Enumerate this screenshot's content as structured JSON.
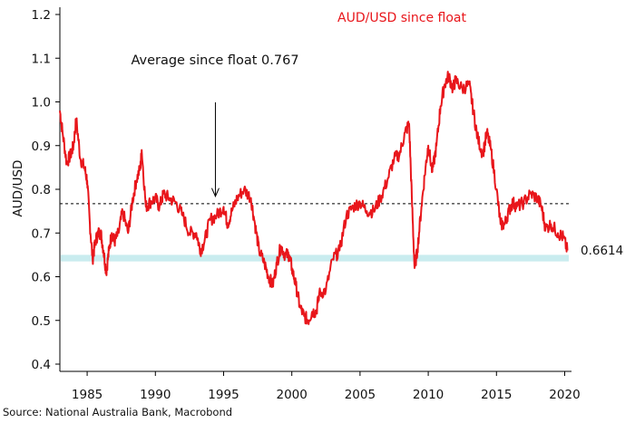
{
  "chart_data": {
    "type": "line",
    "title": "AUD/USD since float",
    "ylabel": "AUD/USD",
    "xlabel": "",
    "xlim": [
      1983.0,
      2020.3
    ],
    "ylim": [
      0.4,
      1.2
    ],
    "y_ticks": [
      0.4,
      0.5,
      0.6,
      0.7,
      0.8,
      0.9,
      1.0,
      1.1,
      1.2
    ],
    "x_ticks": [
      1985,
      1990,
      1995,
      2000,
      2005,
      2010,
      2015,
      2020
    ],
    "average": {
      "value": 0.767,
      "label": "Average since float 0.767",
      "arrow_year": 1994.4
    },
    "band": {
      "range": [
        0.635,
        0.65
      ]
    },
    "last_value_label": "0.6614",
    "series": [
      {
        "color": "#e8161b",
        "x": [
          1983.0,
          1983.2,
          1983.5,
          1983.8,
          1984.0,
          1984.2,
          1984.5,
          1984.8,
          1985.0,
          1985.2,
          1985.4,
          1985.6,
          1985.8,
          1986.0,
          1986.2,
          1986.4,
          1986.6,
          1986.8,
          1987.0,
          1987.3,
          1987.6,
          1988.0,
          1988.3,
          1988.6,
          1988.9,
          1989.0,
          1989.3,
          1989.6,
          1990.0,
          1990.3,
          1990.6,
          1991.0,
          1991.5,
          1992.0,
          1992.5,
          1993.0,
          1993.3,
          1993.6,
          1994.0,
          1994.5,
          1995.0,
          1995.3,
          1995.6,
          1996.0,
          1996.5,
          1997.0,
          1997.3,
          1997.6,
          1998.0,
          1998.3,
          1998.6,
          1998.9,
          1999.2,
          1999.5,
          1999.8,
          2000.0,
          2000.3,
          2000.6,
          2000.9,
          2001.2,
          2001.5,
          2001.8,
          2002.0,
          2002.5,
          2003.0,
          2003.5,
          2004.0,
          2004.5,
          2005.0,
          2005.5,
          2006.0,
          2006.5,
          2007.0,
          2007.5,
          2007.9,
          2008.3,
          2008.6,
          2008.8,
          2009.0,
          2009.2,
          2009.5,
          2009.8,
          2010.0,
          2010.3,
          2010.6,
          2010.9,
          2011.2,
          2011.5,
          2011.8,
          2012.0,
          2012.5,
          2013.0,
          2013.3,
          2013.6,
          2014.0,
          2014.3,
          2014.6,
          2015.0,
          2015.3,
          2015.6,
          2015.9,
          2016.2,
          2016.5,
          2017.0,
          2017.5,
          2018.0,
          2018.3,
          2018.6,
          2019.0,
          2019.5,
          2019.9,
          2020.2
        ],
        "y": [
          0.98,
          0.93,
          0.86,
          0.88,
          0.9,
          0.96,
          0.87,
          0.85,
          0.82,
          0.72,
          0.64,
          0.68,
          0.7,
          0.7,
          0.66,
          0.61,
          0.66,
          0.7,
          0.68,
          0.7,
          0.75,
          0.7,
          0.77,
          0.82,
          0.85,
          0.89,
          0.76,
          0.77,
          0.78,
          0.76,
          0.79,
          0.78,
          0.77,
          0.74,
          0.7,
          0.7,
          0.66,
          0.68,
          0.73,
          0.74,
          0.76,
          0.72,
          0.75,
          0.78,
          0.8,
          0.78,
          0.72,
          0.66,
          0.63,
          0.6,
          0.58,
          0.63,
          0.67,
          0.65,
          0.65,
          0.62,
          0.58,
          0.53,
          0.51,
          0.5,
          0.52,
          0.52,
          0.56,
          0.57,
          0.64,
          0.66,
          0.74,
          0.76,
          0.77,
          0.75,
          0.75,
          0.78,
          0.82,
          0.87,
          0.88,
          0.93,
          0.95,
          0.78,
          0.62,
          0.66,
          0.76,
          0.85,
          0.9,
          0.84,
          0.9,
          0.99,
          1.04,
          1.06,
          1.03,
          1.05,
          1.03,
          1.04,
          0.98,
          0.92,
          0.88,
          0.93,
          0.89,
          0.8,
          0.72,
          0.72,
          0.75,
          0.77,
          0.76,
          0.77,
          0.79,
          0.78,
          0.76,
          0.71,
          0.72,
          0.7,
          0.69,
          0.66
        ]
      }
    ]
  },
  "source": "Source: National Australia Bank, Macrobond"
}
